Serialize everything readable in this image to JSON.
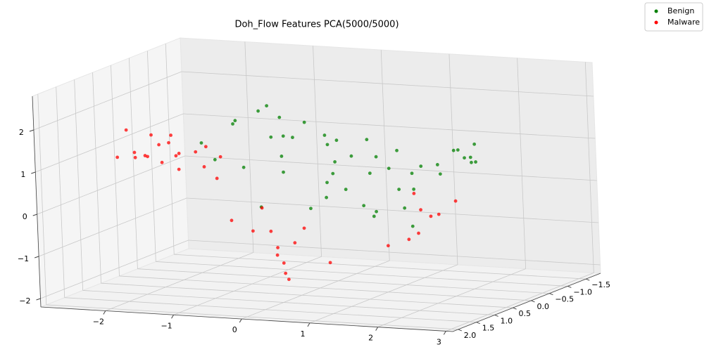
{
  "chart_data": {
    "type": "scatter3d",
    "title": "Doh_Flow Features PCA(5000/5000)",
    "xlim": [
      -2.95,
      3.1
    ],
    "ylim": [
      2.15,
      -1.9
    ],
    "zlim": [
      -2.2,
      2.8
    ],
    "xticks": [
      {
        "value": -2,
        "label": "−2"
      },
      {
        "value": -1,
        "label": "−1"
      },
      0,
      1,
      2,
      3
    ],
    "yticks": [
      {
        "value": -1.5,
        "label": "−1.5"
      },
      {
        "value": -1,
        "label": "−1.0"
      },
      {
        "value": -0.5,
        "label": "−0.5"
      },
      {
        "value": 0,
        "label": "0.0"
      },
      {
        "value": 0.5,
        "label": "0.5"
      },
      {
        "value": 1,
        "label": "1.0"
      },
      {
        "value": 1.5,
        "label": "1.5"
      },
      {
        "value": 2,
        "label": "2.0"
      }
    ],
    "zticks": [
      {
        "value": -2,
        "label": "−2"
      },
      {
        "value": -1,
        "label": "−1"
      },
      0,
      1,
      2
    ],
    "grid": true,
    "legend": "upper right",
    "series": [
      {
        "name": "Benign",
        "color": "#008000",
        "x": [
          -1.5,
          -1.3,
          -1.1,
          -0.9,
          -0.7,
          -0.5,
          -0.3,
          -0.1,
          0.1,
          0.3,
          0.5,
          0.7,
          0.9,
          1.1,
          1.3,
          1.5,
          -1.2,
          -0.8,
          -0.4,
          0.0,
          0.4,
          0.8,
          1.2,
          1.6,
          -1.0,
          -0.6,
          -0.2,
          0.2,
          0.6,
          1.0,
          1.4,
          1.8,
          2.0,
          2.1,
          2.2,
          2.3,
          2.4,
          2.0,
          2.2,
          2.3,
          -0.6,
          -0.2,
          0.2,
          0.6,
          1.0,
          1.4,
          0.0,
          0.8
        ],
        "y": [
          0.3,
          -0.2,
          0.1,
          -0.4,
          0.2,
          0,
          -0.3,
          0.4,
          -0.1,
          0.2,
          -0.5,
          0.3,
          0,
          -0.2,
          0.4,
          -0.1,
          0.5,
          -0.3,
          0.1,
          -0.6,
          0.2,
          0,
          -0.4,
          0.3,
          0.1,
          -0.2,
          0.5,
          -0.1,
          0.3,
          -0.4,
          0.2,
          0,
          -0.2,
          0.1,
          0,
          -0.1,
          0.2,
          0.3,
          -0.3,
          0,
          0.4,
          -0.2,
          0.1,
          -0.5,
          0.3,
          0,
          -0.3,
          0.2
        ],
        "z": [
          1.2,
          1.5,
          1.7,
          1.9,
          2.0,
          1.8,
          1.6,
          1.5,
          1.4,
          1.3,
          1.2,
          1.1,
          1.0,
          1.1,
          0.9,
          0.8,
          0.9,
          1.2,
          1.4,
          1.1,
          0.9,
          0.6,
          0.5,
          0.4,
          0.6,
          0.8,
          0.7,
          0.5,
          0.3,
          0.1,
          -0.1,
          0.9,
          1.2,
          1.3,
          1.1,
          1.4,
          1.2,
          0.8,
          0.9,
          1.0,
          -0.2,
          -0.4,
          0.0,
          -0.5,
          -0.3,
          -0.6,
          0.2,
          -0.1
        ]
      },
      {
        "name": "Malware",
        "color": "#ff0000",
        "x": [
          -2.8,
          -2.7,
          -2.6,
          -2.5,
          -2.4,
          -2.3,
          -2.2,
          -2.1,
          -2.0,
          -1.9,
          -1.8,
          -1.7,
          -1.6,
          -1.5,
          -1.4,
          -2.6,
          -2.4,
          -2.2,
          -2.0,
          -1.1,
          -0.9,
          -0.8,
          -0.6,
          -0.5,
          -0.4,
          -0.3,
          -0.5,
          -0.4,
          0.0,
          -0.7,
          -0.2,
          1.3,
          1.5,
          1.7,
          1.9,
          2.0,
          2.1,
          1.6,
          1.8
        ],
        "y": [
          0.2,
          -0.1,
          0.1,
          0,
          -0.2,
          0.3,
          0.1,
          -0.1,
          0,
          0.2,
          -0.3,
          0.1,
          0,
          -0.2,
          0.1,
          0.3,
          0,
          -0.1,
          0.2,
          0.3,
          0.1,
          -0.2,
          0,
          0.2,
          -0.1,
          0.4,
          0,
          0.1,
          -0.3,
          0.2,
          0,
          0.5,
          0.3,
          0.4,
          0.2,
          0.6,
          0.1,
          0.3,
          0.5
        ],
        "z": [
          0.7,
          0.6,
          0.8,
          0.7,
          0.9,
          0.8,
          0.6,
          0.7,
          0.8,
          0.5,
          0.4,
          0.9,
          1.0,
          0.7,
          0.3,
          1.4,
          1.2,
          1.0,
          1.3,
          -0.6,
          -0.9,
          -1.0,
          -1.3,
          -1.4,
          -1.2,
          -1.5,
          -1.9,
          -2.0,
          -1.7,
          -0.3,
          -0.8,
          -0.9,
          -0.8,
          -0.6,
          -0.2,
          -0.1,
          0.1,
          0.3,
          0.0
        ]
      }
    ]
  }
}
